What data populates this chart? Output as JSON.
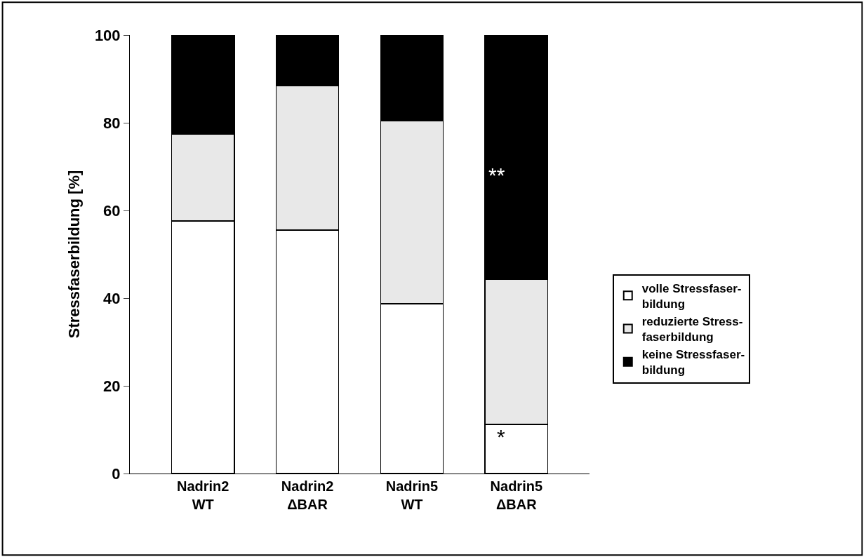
{
  "chart_data": {
    "type": "bar",
    "stacked": true,
    "ylabel": "Stressfaserbildung [%]",
    "categories": [
      "Nadrin2\nWT",
      "Nadrin2\nΔBAR",
      "Nadrin5\nWT",
      "Nadrin5\nΔBAR"
    ],
    "series": [
      {
        "name": "volle Stressfaser-\nbildung",
        "color": "#ffffff",
        "values": [
          57.6,
          55.5,
          38.7,
          11.2
        ]
      },
      {
        "name": "reduzierte Stress-\nfaserbildung",
        "color": "#e8e8e8",
        "values": [
          19.8,
          33.0,
          41.8,
          33.1
        ]
      },
      {
        "name": "keine Stressfaser-\nbildung",
        "color": "#000000",
        "values": [
          22.6,
          11.5,
          19.5,
          55.7
        ]
      }
    ],
    "ylim": [
      0,
      100
    ],
    "yticks": [
      0,
      20,
      40,
      60,
      80,
      100
    ],
    "legend": "right",
    "annotations": [
      "*",
      "**"
    ]
  }
}
